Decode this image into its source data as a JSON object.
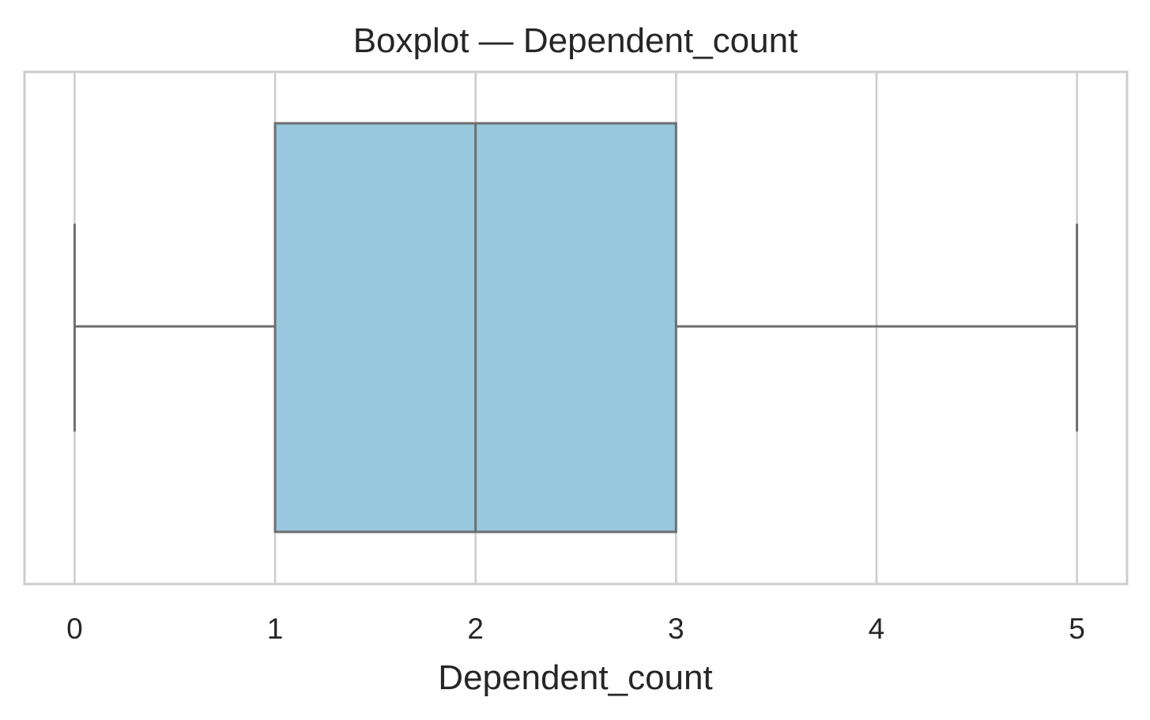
{
  "chart_data": {
    "type": "box",
    "title": "Boxplot — Dependent_count",
    "xlabel": "Dependent_count",
    "ylabel": "",
    "xlim": [
      -0.25,
      5.25
    ],
    "xticks": [
      0,
      1,
      2,
      3,
      4,
      5
    ],
    "xtick_labels": [
      "0",
      "1",
      "2",
      "3",
      "4",
      "5"
    ],
    "grid": true,
    "orientation": "horizontal",
    "series": [
      {
        "whisker_low": 0,
        "q1": 1,
        "median": 2,
        "q3": 3,
        "whisker_high": 5,
        "color": "#97c8de"
      }
    ],
    "colors": {
      "box_fill": "#97c8de",
      "box_line": "#6e6e6e",
      "grid": "#cccccc",
      "frame": "#cccccc",
      "text": "#262626"
    }
  }
}
